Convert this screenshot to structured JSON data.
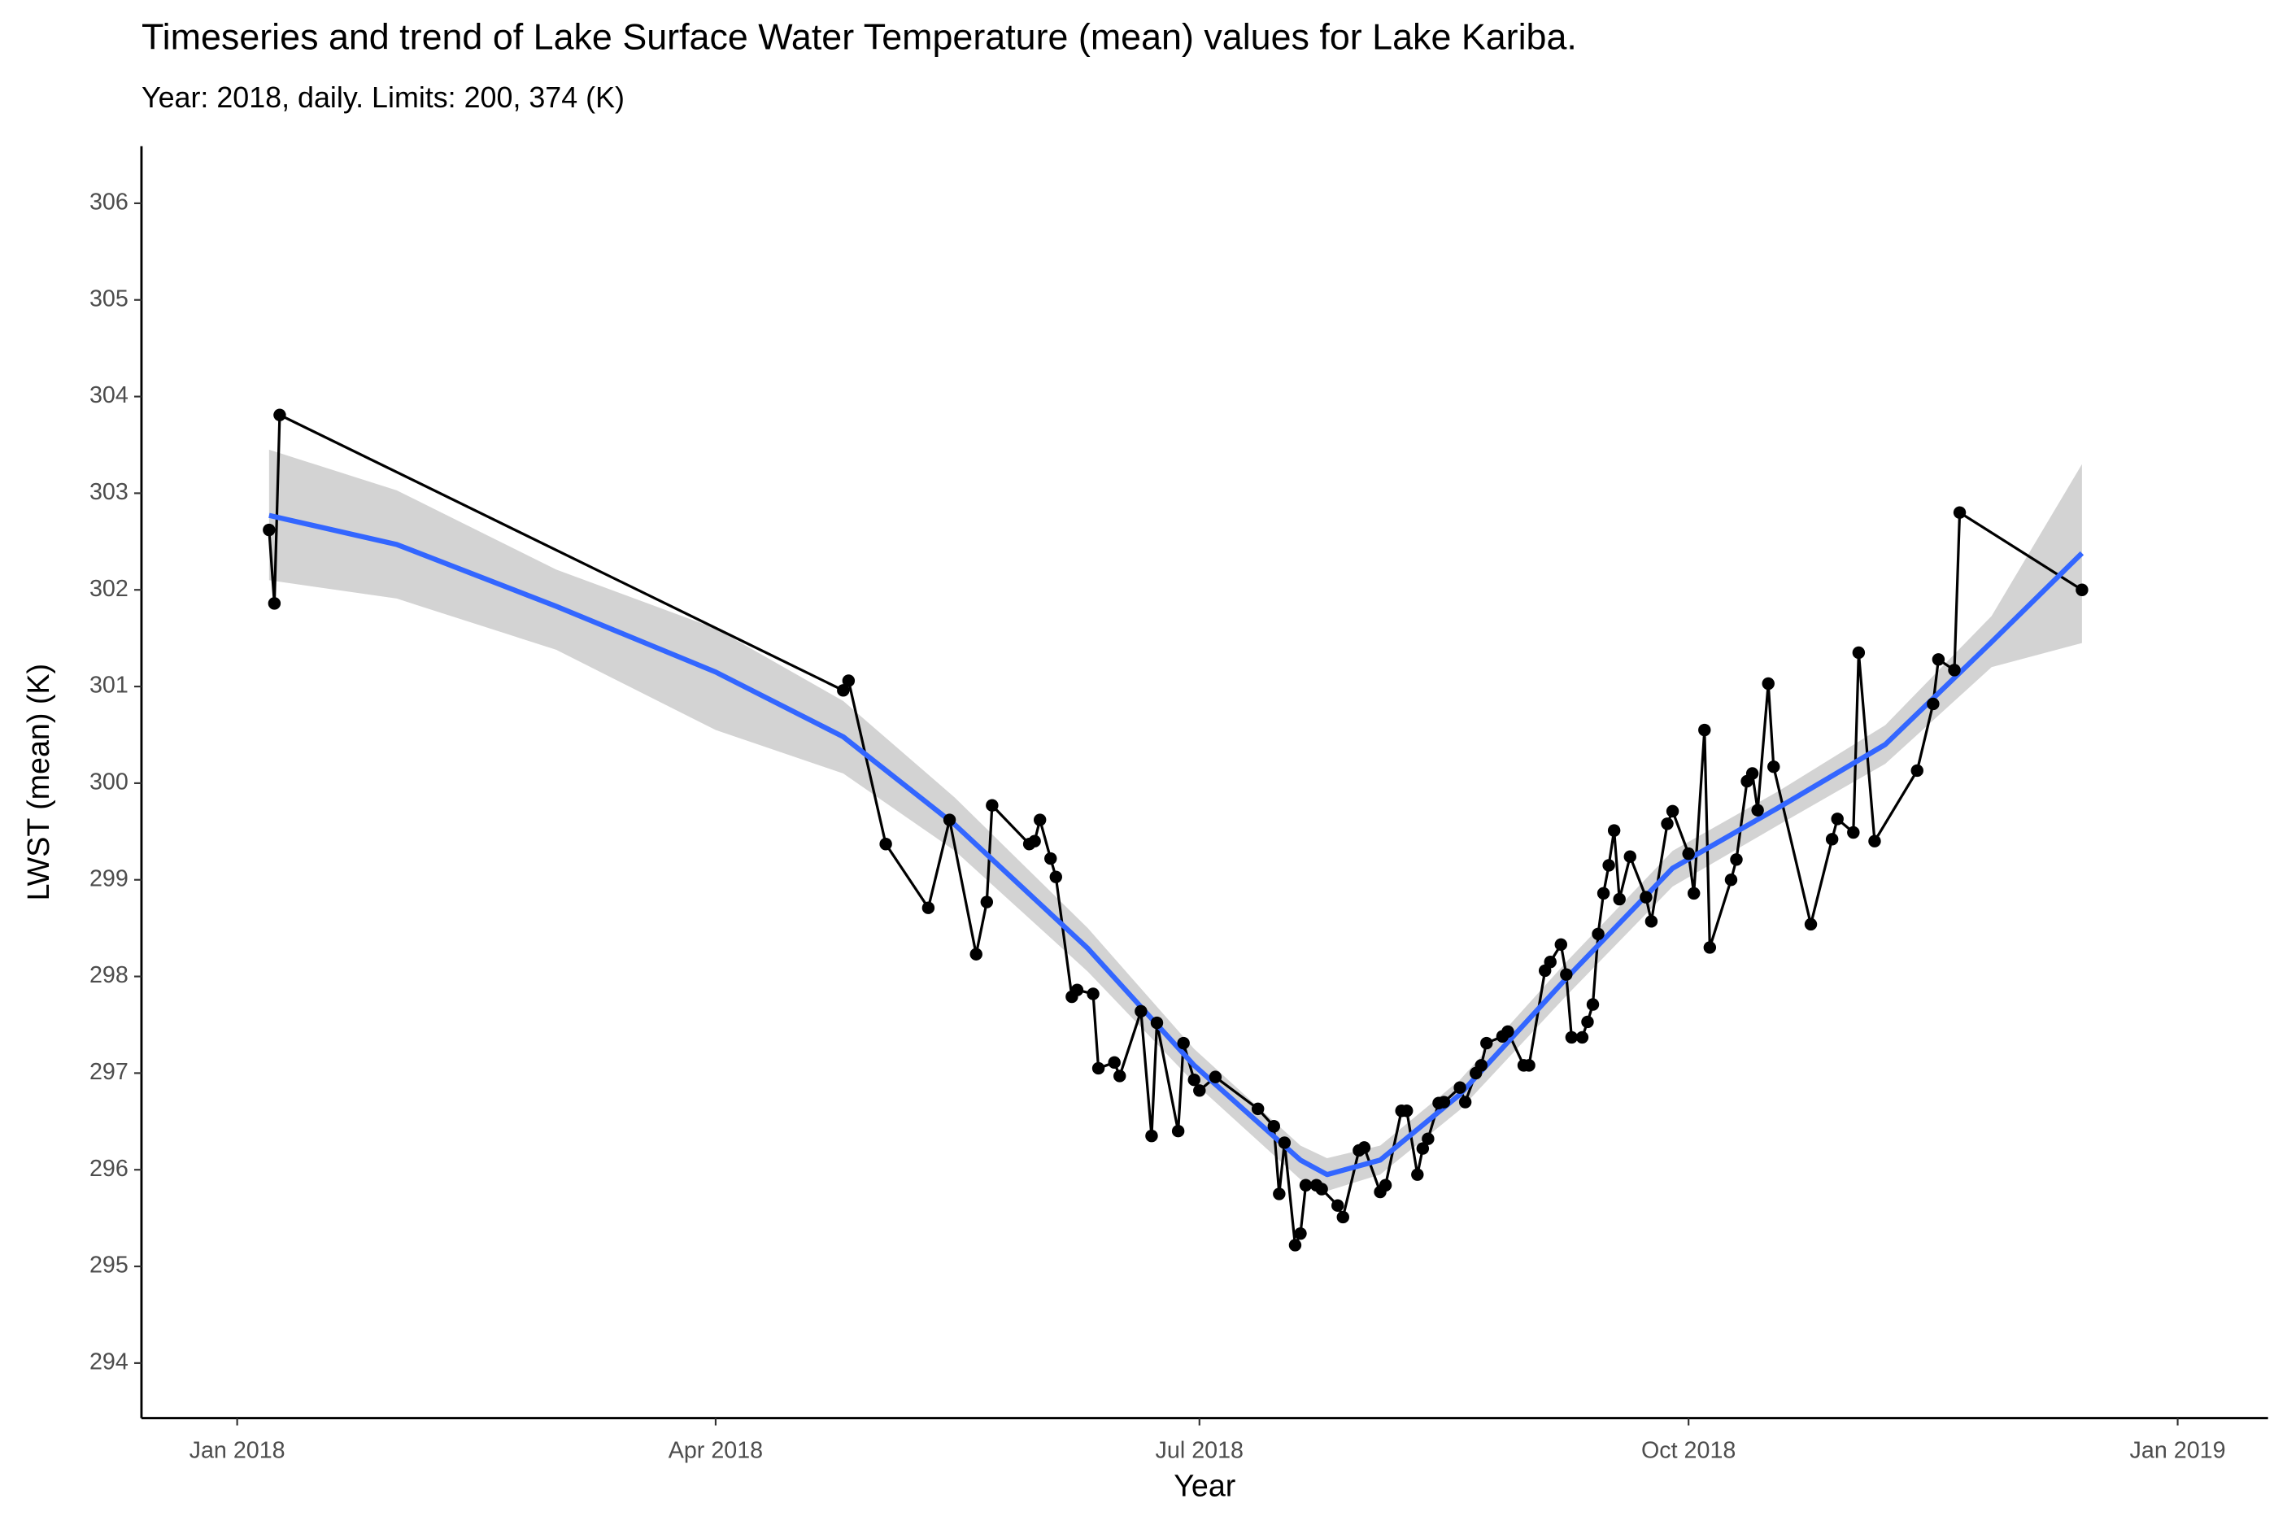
{
  "chart_data": {
    "type": "line",
    "title": "Timeseries and trend of Lake Surface Water Temperature (mean) values for Lake Kariba.",
    "subtitle": "Year: 2018, daily. Limits: 200, 374 (K)",
    "x_label": "Year",
    "y_label": "LWST (mean) (K)",
    "xlim": [
      -18,
      382
    ],
    "xticks": [
      {
        "value": 0,
        "label": "Jan 2018"
      },
      {
        "value": 90,
        "label": "Apr 2018"
      },
      {
        "value": 181,
        "label": "Jul 2018"
      },
      {
        "value": 273,
        "label": "Oct 2018"
      },
      {
        "value": 365,
        "label": "Jan 2019"
      }
    ],
    "ylim": [
      293.43,
      306.59
    ],
    "yticks": [
      294,
      295,
      296,
      297,
      298,
      299,
      300,
      301,
      302,
      303,
      304,
      305,
      306
    ],
    "x": [
      6,
      7,
      8,
      114,
      115,
      122,
      130,
      134,
      139,
      141,
      142,
      149,
      150,
      151,
      153,
      154,
      157,
      158,
      161,
      162,
      165,
      166,
      170,
      172,
      173,
      177,
      178,
      180,
      181,
      184,
      192,
      195,
      196,
      197,
      199,
      200,
      201,
      203,
      204,
      207,
      208,
      211,
      212,
      215,
      216,
      219,
      220,
      222,
      223,
      224,
      226,
      227,
      230,
      231,
      233,
      234,
      235,
      238,
      239,
      242,
      243,
      246,
      247,
      249,
      250,
      251,
      253,
      254,
      255,
      256,
      257,
      258,
      259,
      260,
      262,
      265,
      266,
      269,
      270,
      273,
      274,
      276,
      277,
      281,
      282,
      284,
      285,
      286,
      288,
      289,
      296,
      300,
      301,
      304,
      305,
      308,
      316,
      319,
      320,
      323,
      324,
      347
    ],
    "series": [
      {
        "color": "#000000",
        "values": [
          302.62,
          301.86,
          303.81,
          300.96,
          301.06,
          299.37,
          298.71,
          299.62,
          298.23,
          298.77,
          299.77,
          299.37,
          299.4,
          299.62,
          299.22,
          299.03,
          297.79,
          297.86,
          297.82,
          297.05,
          297.11,
          296.97,
          297.64,
          296.35,
          297.52,
          296.4,
          297.31,
          296.93,
          296.82,
          296.96,
          296.63,
          296.45,
          295.75,
          296.28,
          295.22,
          295.34,
          295.84,
          295.84,
          295.8,
          295.63,
          295.51,
          296.2,
          296.23,
          295.77,
          295.84,
          296.61,
          296.61,
          295.95,
          296.22,
          296.32,
          296.69,
          296.7,
          296.85,
          296.7,
          297.0,
          297.08,
          297.31,
          297.38,
          297.43,
          297.08,
          297.08,
          298.06,
          298.15,
          298.33,
          298.02,
          297.37,
          297.37,
          297.53,
          297.71,
          298.44,
          298.86,
          299.15,
          299.51,
          298.8,
          299.24,
          298.82,
          298.57,
          299.58,
          299.71,
          299.27,
          298.86,
          300.55,
          298.3,
          299.0,
          299.21,
          300.02,
          300.1,
          299.72,
          301.03,
          300.17,
          298.54,
          299.42,
          299.63,
          299.49,
          301.35,
          299.4,
          300.13,
          300.82,
          301.28,
          301.17,
          302.8,
          302.0
        ]
      }
    ],
    "trend": {
      "color": "#3366ff",
      "band_color": "#d3d3d3",
      "x": [
        6,
        30,
        60,
        90,
        114,
        135,
        160,
        180,
        200,
        205,
        215,
        230,
        250,
        270,
        290,
        310,
        330,
        347
      ],
      "values": [
        302.77,
        302.47,
        301.83,
        301.15,
        300.48,
        299.57,
        298.29,
        297.08,
        296.1,
        295.95,
        296.1,
        296.78,
        297.98,
        299.12,
        299.75,
        300.4,
        301.46,
        302.38
      ],
      "lower": [
        302.1,
        301.91,
        301.38,
        300.55,
        300.1,
        299.3,
        298.05,
        296.9,
        295.9,
        295.78,
        295.95,
        296.62,
        297.8,
        298.93,
        299.57,
        300.2,
        301.2,
        301.45
      ],
      "upper": [
        303.45,
        303.03,
        302.21,
        301.6,
        300.85,
        299.85,
        298.5,
        297.25,
        296.25,
        296.12,
        296.25,
        296.93,
        298.15,
        299.3,
        299.92,
        300.6,
        301.73,
        303.3
      ]
    }
  }
}
